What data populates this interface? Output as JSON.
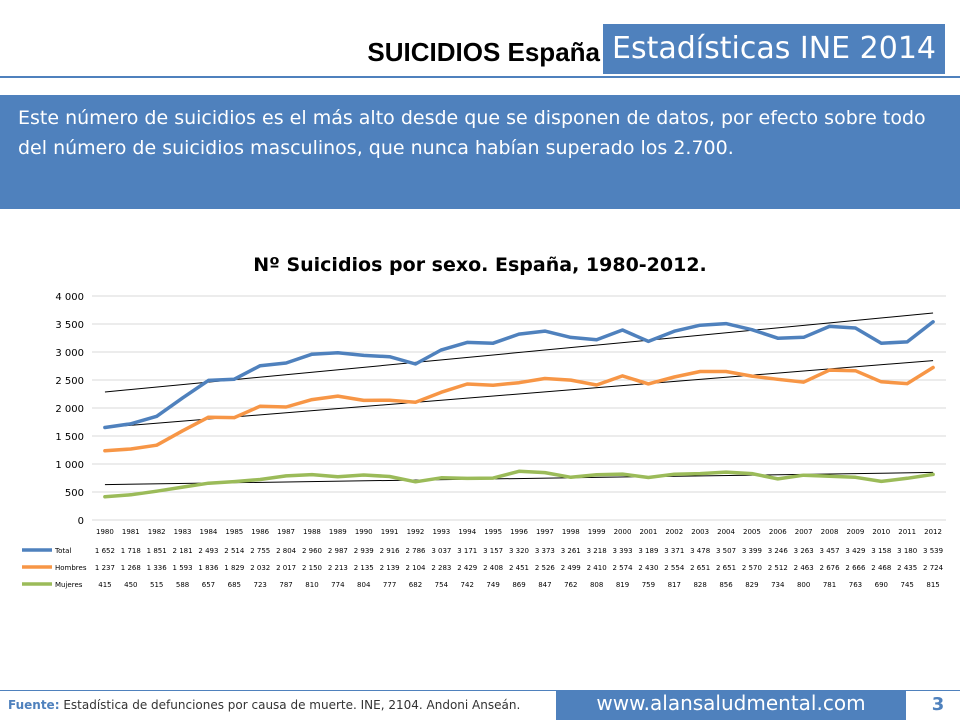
{
  "header": {
    "left_title": "SUICIDIOS España",
    "right_title": "Estadísticas INE 2014"
  },
  "banner": {
    "text": "Este número de suicidios es el más alto desde que se disponen de datos, por efecto sobre todo del número de suicidios masculinos, que nunca habían superado los 2.700."
  },
  "chart_data": {
    "type": "line",
    "title": "Nº Suicidios por sexo. España, 1980-2012.",
    "x": [
      "1980",
      "1981",
      "1982",
      "1983",
      "1984",
      "1985",
      "1986",
      "1987",
      "1988",
      "1989",
      "1990",
      "1991",
      "1992",
      "1993",
      "1994",
      "1995",
      "1996",
      "1997",
      "1998",
      "1999",
      "2000",
      "2001",
      "2002",
      "2003",
      "2004",
      "2005",
      "2006",
      "2007",
      "2008",
      "2009",
      "2010",
      "2011",
      "2012"
    ],
    "ylim": [
      0,
      4000
    ],
    "yticks": [
      0,
      500,
      1000,
      1500,
      2000,
      2500,
      3000,
      3500,
      4000
    ],
    "ytick_labels": [
      "0",
      "500",
      "1 000",
      "1 500",
      "2 000",
      "2 500",
      "3 000",
      "3 500",
      "4 000"
    ],
    "grid": true,
    "trendlines": true,
    "legend": "data-table-below",
    "series": [
      {
        "name": "Total",
        "color": "#4f81bd",
        "values": [
          1652,
          1718,
          1851,
          2181,
          2493,
          2514,
          2755,
          2804,
          2960,
          2987,
          2939,
          2916,
          2786,
          3037,
          3171,
          3157,
          3320,
          3373,
          3261,
          3218,
          3393,
          3189,
          3371,
          3478,
          3507,
          3399,
          3246,
          3263,
          3457,
          3429,
          3158,
          3180,
          3539
        ],
        "labels": [
          "1 652",
          "1 718",
          "1 851",
          "2 181",
          "2 493",
          "2 514",
          "2 755",
          "2 804",
          "2 960",
          "2 987",
          "2 939",
          "2 916",
          "2 786",
          "3 037",
          "3 171",
          "3 157",
          "3 320",
          "3 373",
          "3 261",
          "3 218",
          "3 393",
          "3 189",
          "3 371",
          "3 478",
          "3 507",
          "3 399",
          "3 246",
          "3 263",
          "3 457",
          "3 429",
          "3 158",
          "3 180",
          "3 539"
        ]
      },
      {
        "name": "Hombres",
        "color": "#f79646",
        "values": [
          1237,
          1268,
          1336,
          1593,
          1836,
          1829,
          2032,
          2017,
          2150,
          2213,
          2135,
          2139,
          2104,
          2283,
          2429,
          2408,
          2451,
          2526,
          2499,
          2410,
          2574,
          2430,
          2554,
          2651,
          2651,
          2570,
          2512,
          2463,
          2676,
          2666,
          2468,
          2435,
          2724
        ],
        "labels": [
          "1 237",
          "1 268",
          "1 336",
          "1 593",
          "1 836",
          "1 829",
          "2 032",
          "2 017",
          "2 150",
          "2 213",
          "2 135",
          "2 139",
          "2 104",
          "2 283",
          "2 429",
          "2 408",
          "2 451",
          "2 526",
          "2 499",
          "2 410",
          "2 574",
          "2 430",
          "2 554",
          "2 651",
          "2 651",
          "2 570",
          "2 512",
          "2 463",
          "2 676",
          "2 666",
          "2 468",
          "2 435",
          "2 724"
        ]
      },
      {
        "name": "Mujeres",
        "color": "#9bbb59",
        "values": [
          415,
          450,
          515,
          588,
          657,
          685,
          723,
          787,
          810,
          774,
          804,
          777,
          682,
          754,
          742,
          749,
          869,
          847,
          762,
          808,
          819,
          759,
          817,
          828,
          856,
          829,
          734,
          800,
          781,
          763,
          690,
          745,
          815
        ],
        "labels": [
          "415",
          "450",
          "515",
          "588",
          "657",
          "685",
          "723",
          "787",
          "810",
          "774",
          "804",
          "777",
          "682",
          "754",
          "742",
          "749",
          "869",
          "847",
          "762",
          "808",
          "819",
          "759",
          "817",
          "828",
          "856",
          "829",
          "734",
          "800",
          "781",
          "763",
          "690",
          "745",
          "815"
        ]
      }
    ]
  },
  "footer": {
    "source_label": "Fuente:",
    "source_text": " Estadística de defunciones por causa de muerte. INE, 2104. Andoni Anseán.",
    "website": "www.alansaludmental.com",
    "page_number": "3"
  }
}
